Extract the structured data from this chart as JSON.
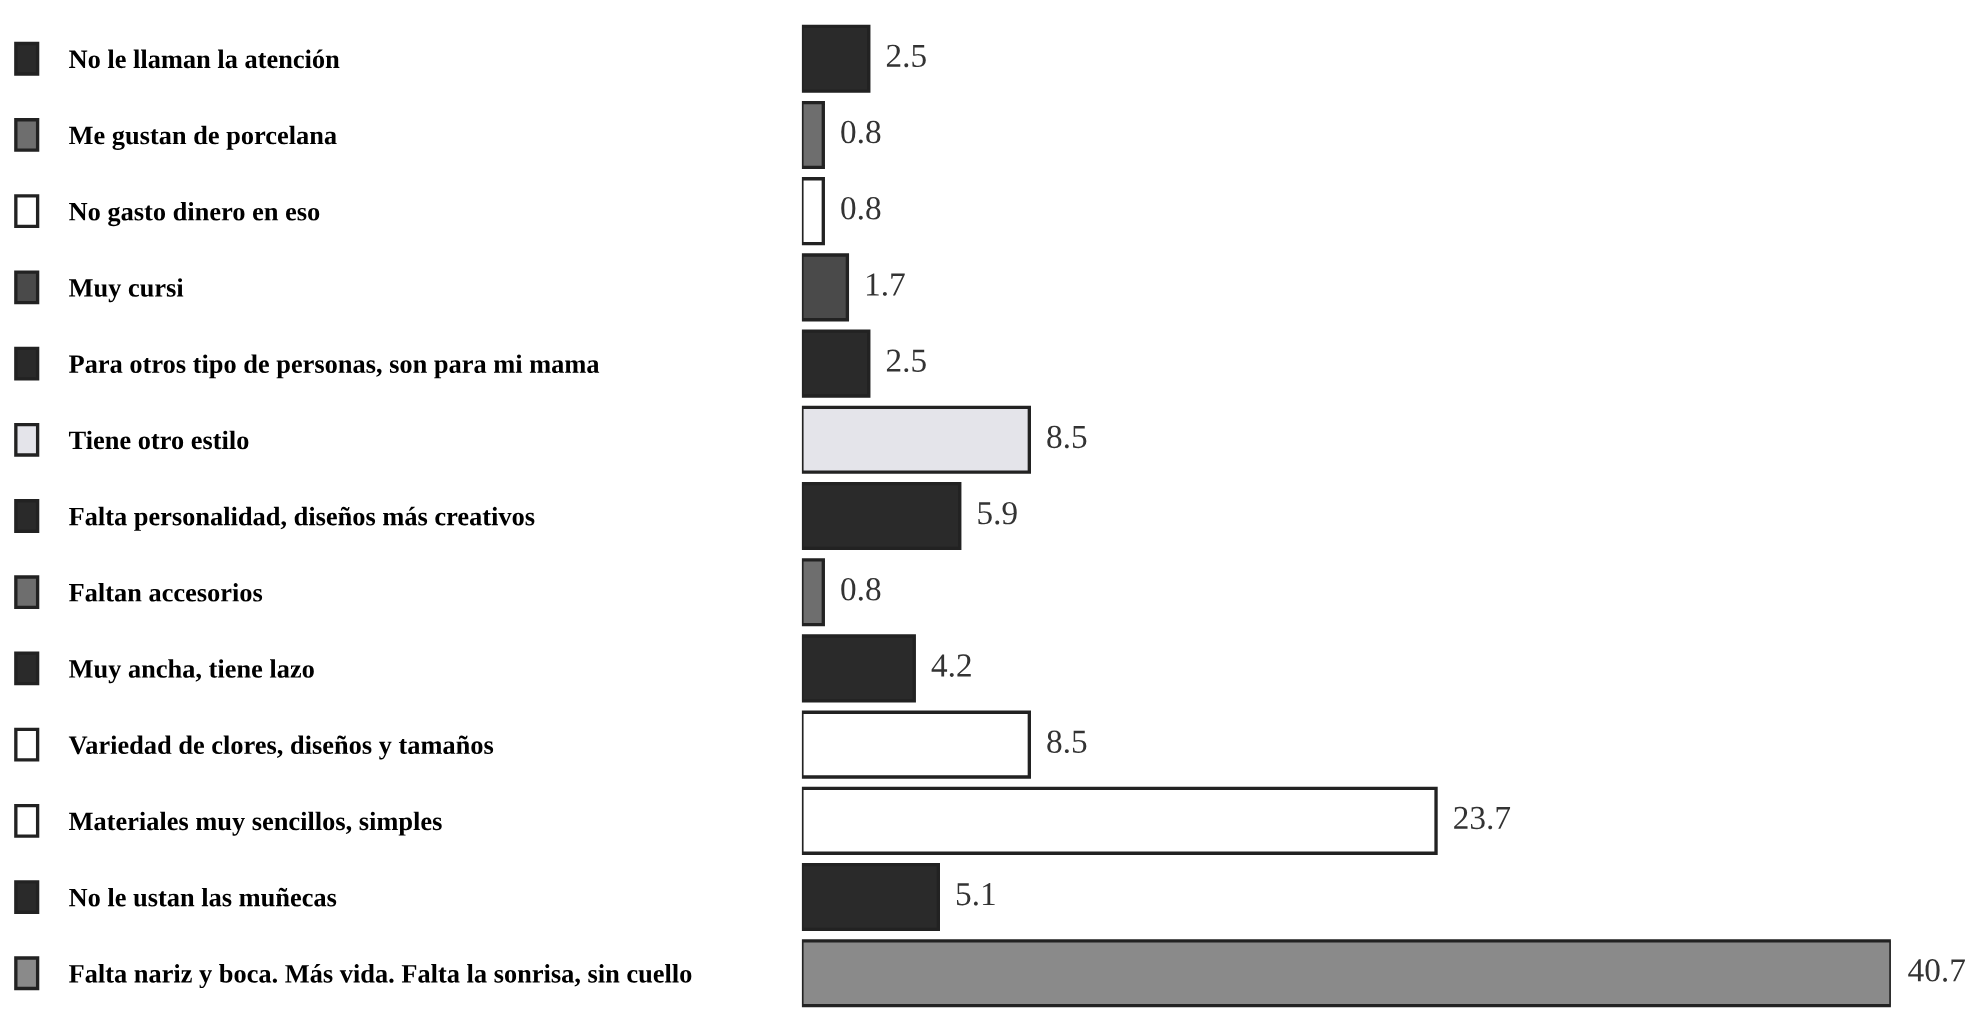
{
  "chart_data": {
    "type": "bar",
    "orientation": "horizontal",
    "data_labels": true,
    "grid": false,
    "tick_labels": "y",
    "categories": [
      "No le llaman la atención",
      "Me gustan de porcelana",
      "No gasto dinero en eso",
      "Muy cursi",
      "Para otros tipo de personas, son para mi mama",
      "Tiene otro estilo",
      "Falta personalidad, diseños más creativos",
      "Faltan accesorios",
      "Muy ancha, tiene lazo",
      "Variedad de clores, diseños y tamaños",
      "Materiales muy sencillos, simples",
      "No le ustan las muñecas",
      "Falta nariz y boca. Más vida. Falta la sonrisa, sin cuello"
    ],
    "values": [
      2.5,
      0.8,
      0.8,
      1.7,
      2.5,
      8.5,
      5.9,
      0.8,
      4.2,
      8.5,
      23.7,
      5.1,
      40.7
    ],
    "colors": [
      "#2a2a2a",
      "#6e6e6e",
      "#ffffff",
      "#4a4a4a",
      "#2a2a2a",
      "#e4e4ea",
      "#2a2a2a",
      "#6e6e6e",
      "#2a2a2a",
      "#ffffff",
      "#ffffff",
      "#2a2a2a",
      "#8a8a8a"
    ]
  }
}
